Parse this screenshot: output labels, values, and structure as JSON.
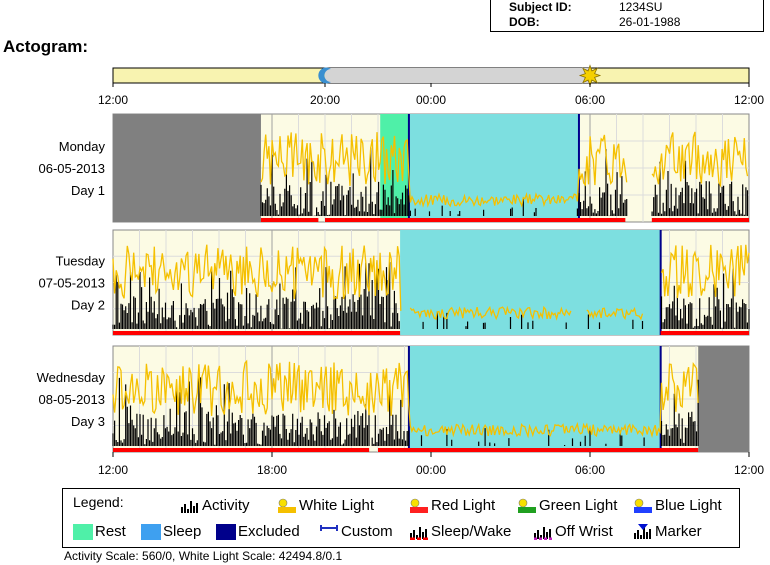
{
  "subject": {
    "id_label": "Subject ID:",
    "id_value": "1234SU",
    "dob_label": "DOB:",
    "dob_value": "26-01-1988"
  },
  "title": "Actogram:",
  "colors": {
    "activity": "#000000",
    "white_light": "#f5c000",
    "red_light": "#ff0000",
    "rest": "#4ff0a8",
    "sleep": "#7ddfe0",
    "excluded": "#808080",
    "plot_bg": "#fcfbe4",
    "sun_bar": "#f8f3b0",
    "night_bar": "#d4d4d4"
  },
  "chart_data": {
    "type": "actogram",
    "x_axis_ticks": [
      "12:00",
      "18:00",
      "00:00",
      "06:00",
      "12:00"
    ],
    "top_axis_ticks": [
      "12:00",
      "20:00",
      "00:00",
      "06:00",
      "12:00"
    ],
    "sun_bar": {
      "sunset": "20:00",
      "sunrise": "06:00"
    },
    "days": [
      {
        "label_day": "Monday",
        "label_date": "06-05-2013",
        "label_num": "Day 1",
        "excluded": [
          [
            "12:00",
            "17:35"
          ]
        ],
        "rest": [
          [
            "22:05",
            "23:10"
          ]
        ],
        "sleep": [
          [
            "23:10",
            "05:35"
          ]
        ],
        "markers": [
          "23:10",
          "05:35"
        ],
        "activity_start": "17:35",
        "activity_gaps": [
          [
            "07:25",
            "08:20"
          ]
        ],
        "red_light_segments": [
          [
            "17:35",
            "19:45"
          ],
          [
            "20:00",
            "07:20"
          ],
          [
            "08:20",
            "12:00"
          ]
        ]
      },
      {
        "label_day": "Tuesday",
        "label_date": "07-05-2013",
        "label_num": "Day 2",
        "excluded": [],
        "rest": [],
        "sleep": [
          [
            "22:50",
            "08:40"
          ]
        ],
        "markers": [
          "08:40"
        ],
        "activity_start": "12:00",
        "activity_gaps": [
          [
            "22:55",
            "23:10"
          ],
          [
            "05:20",
            "05:50"
          ],
          [
            "08:00",
            "08:40"
          ]
        ],
        "red_light_segments": [
          [
            "12:00",
            "22:50"
          ],
          [
            "08:40",
            "12:00"
          ]
        ]
      },
      {
        "label_day": "Wednesday",
        "label_date": "08-05-2013",
        "label_num": "Day 3",
        "excluded": [
          [
            "10:05",
            "12:00"
          ]
        ],
        "rest": [],
        "sleep": [
          [
            "23:10",
            "08:40"
          ]
        ],
        "markers": [
          "23:10",
          "08:40"
        ],
        "activity_start": "12:00",
        "activity_gaps": [],
        "red_light_segments": [
          [
            "12:00",
            "21:40"
          ],
          [
            "22:00",
            "10:05"
          ]
        ]
      }
    ],
    "legend_title": "Legend:",
    "legend": [
      {
        "name": "Activity",
        "icon": "activity-icon"
      },
      {
        "name": "White Light",
        "icon": "white-light-icon"
      },
      {
        "name": "Red Light",
        "icon": "red-light-icon"
      },
      {
        "name": "Green Light",
        "icon": "green-light-icon"
      },
      {
        "name": "Blue Light",
        "icon": "blue-light-icon"
      },
      {
        "name": "Rest",
        "icon": "rest-swatch"
      },
      {
        "name": "Sleep",
        "icon": "sleep-swatch"
      },
      {
        "name": "Excluded",
        "icon": "excluded-swatch"
      },
      {
        "name": "Custom",
        "icon": "custom-icon"
      },
      {
        "name": "Sleep/Wake",
        "icon": "sleep-wake-icon"
      },
      {
        "name": "Off Wrist",
        "icon": "off-wrist-icon"
      },
      {
        "name": "Marker",
        "icon": "marker-icon"
      }
    ],
    "scale_note": "Activity Scale: 560/0, White Light Scale: 42494.8/0.1"
  }
}
